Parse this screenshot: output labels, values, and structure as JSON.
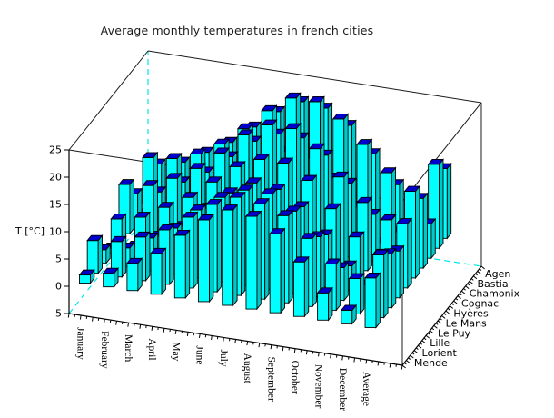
{
  "title": "Average monthly temperatures in french cities",
  "z_axis": {
    "label": "T [°C]",
    "ticks": [
      -5,
      0,
      5,
      10,
      15,
      20,
      25
    ],
    "min": -5,
    "max": 25
  },
  "chart_data": {
    "type": "bar",
    "projection": "3d",
    "title": "Average monthly temperatures in french cities",
    "zlabel": "T [°C]",
    "zlim": [
      -5,
      25
    ],
    "grid": false,
    "legend": "none",
    "categories": [
      "January",
      "February",
      "March",
      "April",
      "May",
      "June",
      "July",
      "August",
      "September",
      "October",
      "November",
      "December",
      "Average"
    ],
    "rows_back_to_front": true,
    "series": [
      {
        "name": "Agen",
        "values": [
          5.5,
          6.5,
          9.0,
          11.5,
          15.0,
          18.5,
          21.0,
          20.5,
          18.0,
          13.5,
          8.5,
          6.0,
          12.8
        ]
      },
      {
        "name": "Bastia",
        "values": [
          8.5,
          9.0,
          10.5,
          13.0,
          16.5,
          20.5,
          23.5,
          23.5,
          21.0,
          17.0,
          12.5,
          9.5,
          15.4
        ]
      },
      {
        "name": "Chamonix",
        "values": [
          -3.0,
          -1.5,
          2.0,
          5.5,
          10.0,
          13.0,
          15.5,
          15.0,
          12.0,
          7.5,
          1.5,
          -2.0,
          6.3
        ]
      },
      {
        "name": "Cognac",
        "values": [
          5.5,
          6.5,
          9.0,
          11.5,
          15.0,
          18.5,
          20.5,
          20.5,
          18.0,
          13.5,
          8.5,
          6.0,
          12.8
        ]
      },
      {
        "name": "Hyères",
        "values": [
          9.0,
          9.5,
          11.5,
          14.0,
          17.5,
          21.5,
          24.0,
          24.0,
          21.0,
          16.5,
          12.5,
          10.0,
          15.9
        ]
      },
      {
        "name": "Le Mans",
        "values": [
          4.5,
          5.5,
          8.0,
          10.5,
          14.0,
          17.5,
          19.5,
          19.5,
          17.0,
          12.5,
          8.0,
          5.5,
          11.8
        ]
      },
      {
        "name": "Le Puy",
        "values": [
          1.0,
          2.0,
          4.5,
          7.0,
          11.0,
          14.5,
          17.0,
          16.5,
          14.0,
          9.5,
          4.5,
          2.0,
          8.6
        ]
      },
      {
        "name": "Lille",
        "values": [
          2.5,
          3.5,
          6.0,
          8.5,
          12.5,
          15.5,
          17.5,
          17.5,
          15.0,
          11.0,
          6.0,
          3.5,
          9.9
        ]
      },
      {
        "name": "Lorient",
        "values": [
          6.0,
          6.5,
          8.0,
          10.0,
          13.0,
          16.0,
          18.0,
          17.5,
          16.0,
          12.5,
          8.5,
          6.5,
          11.5
        ]
      },
      {
        "name": "Mende",
        "values": [
          1.5,
          2.5,
          5.0,
          7.5,
          11.5,
          15.0,
          17.5,
          17.0,
          14.5,
          10.0,
          5.0,
          2.5,
          9.1
        ]
      }
    ],
    "colors": {
      "bar_front": "#00ffff",
      "bar_side": "#00c8c8",
      "bar_top": "#0000cc",
      "bar_outline": "#000000",
      "hidden_edge_dash": "#00e6e6",
      "axis": "#000000",
      "background": "#ffffff"
    }
  }
}
